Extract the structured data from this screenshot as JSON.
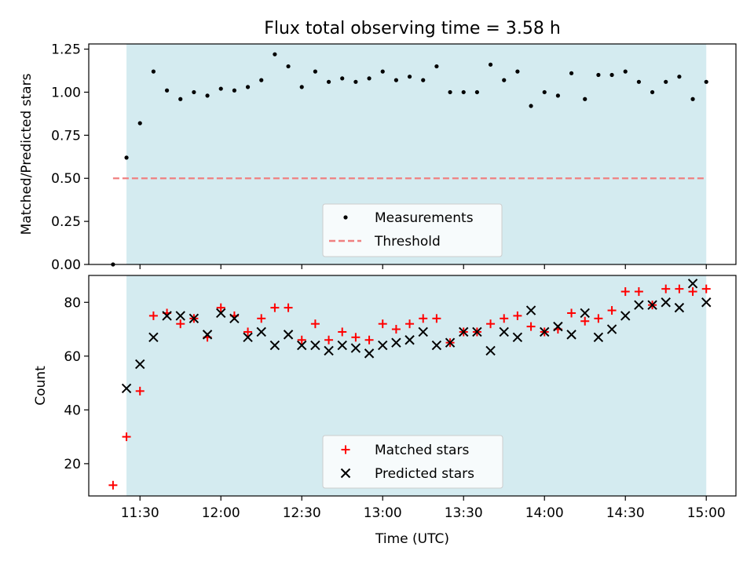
{
  "title": "Flux total observing time = 3.58 h",
  "xlabel": "Time (UTC)",
  "colors": {
    "shade": "#d4ebf0",
    "threshold": "#f08080",
    "matched": "#ff0000",
    "predicted": "#000000",
    "points": "#000000"
  },
  "chart_data": [
    {
      "type": "scatter",
      "ylabel": "Matched/Predicted stars",
      "ylim": [
        0,
        1.28
      ],
      "yticks": [
        0.0,
        0.25,
        0.5,
        0.75,
        1.0,
        1.25
      ],
      "ytick_labels": [
        "0.00",
        "0.25",
        "0.50",
        "0.75",
        "1.00",
        "1.25"
      ],
      "shaded_x_range": [
        "11:25",
        "15:00"
      ],
      "legend": {
        "placement": "lower center",
        "entries": [
          "Measurements",
          "Threshold"
        ]
      },
      "threshold": {
        "name": "Threshold",
        "value": 0.5,
        "x_range": [
          "11:20",
          "15:00"
        ]
      },
      "series": [
        {
          "name": "Measurements",
          "x": [
            "11:20",
            "11:25",
            "11:30",
            "11:35",
            "11:40",
            "11:45",
            "11:50",
            "11:55",
            "12:00",
            "12:05",
            "12:10",
            "12:15",
            "12:20",
            "12:25",
            "12:30",
            "12:35",
            "12:40",
            "12:45",
            "12:50",
            "12:55",
            "13:00",
            "13:05",
            "13:10",
            "13:15",
            "13:20",
            "13:25",
            "13:30",
            "13:35",
            "13:40",
            "13:45",
            "13:50",
            "13:55",
            "14:00",
            "14:05",
            "14:10",
            "14:15",
            "14:20",
            "14:25",
            "14:30",
            "14:35",
            "14:40",
            "14:45",
            "14:50",
            "14:55",
            "15:00"
          ],
          "y": [
            0.0,
            0.62,
            0.82,
            1.12,
            1.01,
            0.96,
            1.0,
            0.98,
            1.02,
            1.01,
            1.03,
            1.07,
            1.22,
            1.15,
            1.03,
            1.12,
            1.06,
            1.08,
            1.06,
            1.08,
            1.12,
            1.07,
            1.09,
            1.07,
            1.15,
            1.0,
            1.0,
            1.0,
            1.16,
            1.07,
            1.12,
            0.92,
            1.0,
            0.98,
            1.11,
            0.96,
            1.1,
            1.1,
            1.12,
            1.06,
            1.0,
            1.06,
            1.09,
            0.96,
            1.06
          ]
        }
      ]
    },
    {
      "type": "scatter",
      "ylabel": "Count",
      "ylim": [
        8,
        90
      ],
      "yticks": [
        20,
        40,
        60,
        80
      ],
      "ytick_labels": [
        "20",
        "40",
        "60",
        "80"
      ],
      "xticks": [
        "11:30",
        "12:00",
        "12:30",
        "13:00",
        "13:30",
        "14:00",
        "14:30",
        "15:00"
      ],
      "xlim": [
        "11:11",
        "15:11"
      ],
      "shaded_x_range": [
        "11:25",
        "15:00"
      ],
      "legend": {
        "placement": "lower center",
        "entries": [
          "Matched stars",
          "Predicted stars"
        ]
      },
      "series": [
        {
          "name": "Matched stars",
          "marker": "+",
          "x": [
            "11:20",
            "11:25",
            "11:30",
            "11:35",
            "11:40",
            "11:45",
            "11:50",
            "11:55",
            "12:00",
            "12:05",
            "12:10",
            "12:15",
            "12:20",
            "12:25",
            "12:30",
            "12:35",
            "12:40",
            "12:45",
            "12:50",
            "12:55",
            "13:00",
            "13:05",
            "13:10",
            "13:15",
            "13:20",
            "13:25",
            "13:30",
            "13:35",
            "13:40",
            "13:45",
            "13:50",
            "13:55",
            "14:00",
            "14:05",
            "14:10",
            "14:15",
            "14:20",
            "14:25",
            "14:30",
            "14:35",
            "14:40",
            "14:45",
            "14:50",
            "14:55",
            "15:00"
          ],
          "y": [
            12,
            30,
            47,
            75,
            76,
            72,
            74,
            67,
            78,
            75,
            69,
            74,
            78,
            78,
            66,
            72,
            66,
            69,
            67,
            66,
            72,
            70,
            72,
            74,
            74,
            65,
            69,
            69,
            72,
            74,
            75,
            71,
            69,
            70,
            76,
            73,
            74,
            77,
            84,
            84,
            79,
            85,
            85,
            84,
            85
          ]
        },
        {
          "name": "Predicted stars",
          "marker": "x",
          "x": [
            "11:25",
            "11:30",
            "11:35",
            "11:40",
            "11:45",
            "11:50",
            "11:55",
            "12:00",
            "12:05",
            "12:10",
            "12:15",
            "12:20",
            "12:25",
            "12:30",
            "12:35",
            "12:40",
            "12:45",
            "12:50",
            "12:55",
            "13:00",
            "13:05",
            "13:10",
            "13:15",
            "13:20",
            "13:25",
            "13:30",
            "13:35",
            "13:40",
            "13:45",
            "13:50",
            "13:55",
            "14:00",
            "14:05",
            "14:10",
            "14:15",
            "14:20",
            "14:25",
            "14:30",
            "14:35",
            "14:40",
            "14:45",
            "14:50",
            "14:55",
            "15:00"
          ],
          "y": [
            48,
            57,
            67,
            75,
            75,
            74,
            68,
            76,
            74,
            67,
            69,
            64,
            68,
            64,
            64,
            62,
            64,
            63,
            61,
            64,
            65,
            66,
            69,
            64,
            65,
            69,
            69,
            62,
            69,
            67,
            77,
            69,
            71,
            68,
            76,
            67,
            70,
            75,
            79,
            79,
            80,
            78,
            87,
            80
          ]
        }
      ]
    }
  ]
}
